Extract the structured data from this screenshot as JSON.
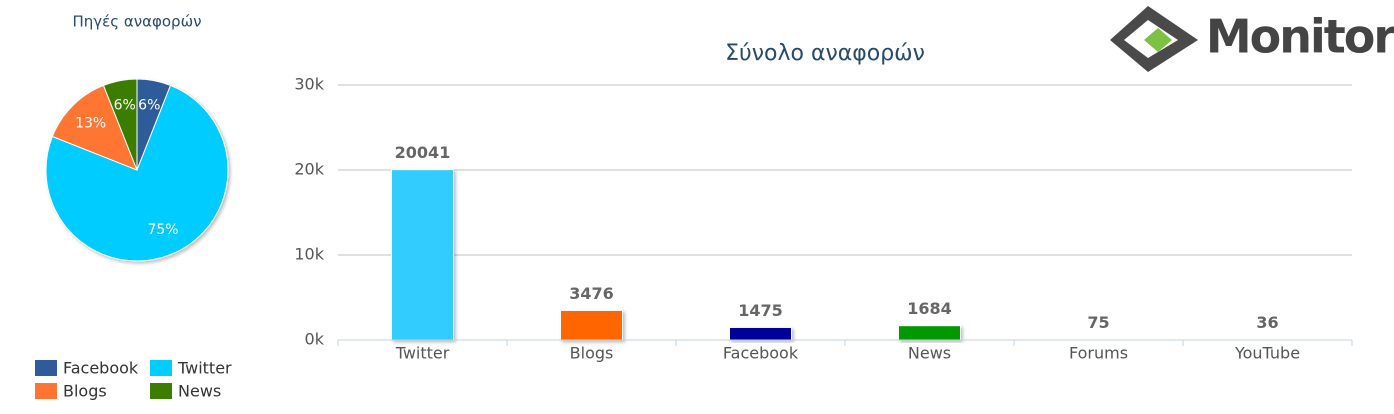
{
  "logo": {
    "text": "Monitor"
  },
  "chart_data": [
    {
      "type": "pie",
      "title": "Πηγές αναφορών",
      "categories": [
        "Facebook",
        "Twitter",
        "Blogs",
        "News"
      ],
      "values": [
        6,
        75,
        13,
        6
      ],
      "value_labels": [
        "6%",
        "75%",
        "13%",
        "6%"
      ],
      "colors": [
        "#2f5b9b",
        "#00ccff",
        "#ff7433",
        "#3a7d00"
      ]
    },
    {
      "type": "bar",
      "title": "Σύνολο αναφορών",
      "categories": [
        "Twitter",
        "Blogs",
        "Facebook",
        "News",
        "Forums",
        "YouTube"
      ],
      "values": [
        20041,
        3476,
        1475,
        1684,
        75,
        36
      ],
      "colors": [
        "#33ccff",
        "#ff6600",
        "#000099",
        "#009900",
        "#7f7f7f",
        "#cc0000"
      ],
      "ylim": [
        0,
        30000
      ],
      "yticks": [
        {
          "value": 0,
          "label": "0k"
        },
        {
          "value": 10000,
          "label": "10k"
        },
        {
          "value": 20000,
          "label": "20k"
        },
        {
          "value": 30000,
          "label": "30k"
        }
      ],
      "grid": true
    }
  ]
}
